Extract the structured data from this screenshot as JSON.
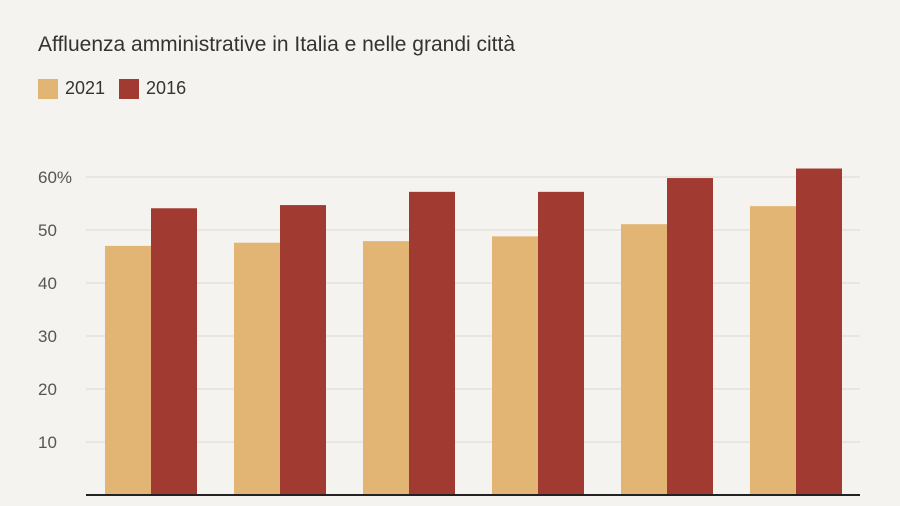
{
  "chart_data": {
    "type": "bar",
    "title": "Affluenza amministrative in Italia e nelle grandi città",
    "xlabel": "",
    "ylabel": "",
    "categories": [
      "",
      "",
      "",
      "",
      "",
      ""
    ],
    "series": [
      {
        "name": "2021",
        "color": "#e3b574",
        "values": [
          47.0,
          47.6,
          47.9,
          48.8,
          51.1,
          54.5
        ]
      },
      {
        "name": "2016",
        "color": "#a13a30",
        "values": [
          54.1,
          54.7,
          57.2,
          57.2,
          59.8,
          61.6
        ]
      }
    ],
    "ylim": [
      0,
      60
    ],
    "yticks": [
      10,
      20,
      30,
      40,
      50,
      60
    ],
    "ytick_labels": [
      "10",
      "20",
      "30",
      "40",
      "50",
      "60%"
    ],
    "grid": true,
    "legend_position": "top-left"
  }
}
